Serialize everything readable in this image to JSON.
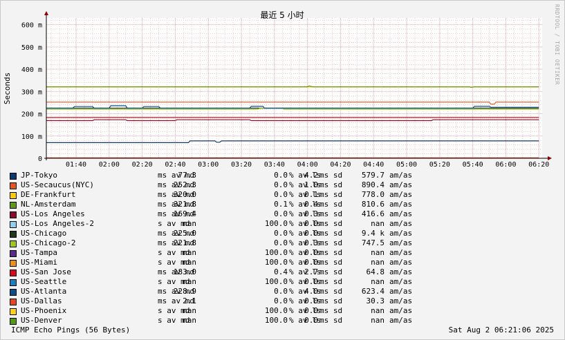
{
  "chart_data": {
    "type": "line",
    "title": "最近 5 小时",
    "ylabel": "Seconds",
    "xlabel": "",
    "ylim": [
      0,
      630
    ],
    "yticks": [
      0,
      100,
      200,
      300,
      400,
      500,
      600
    ],
    "ytick_labels": [
      "0",
      "100 m",
      "200 m",
      "300 m",
      "400 m",
      "500 m",
      "600 m"
    ],
    "xlim": [
      "01:22",
      "06:22"
    ],
    "xticks": [
      "01:40",
      "02:00",
      "02:20",
      "02:40",
      "03:00",
      "03:20",
      "03:40",
      "04:00",
      "04:20",
      "04:40",
      "05:00",
      "05:20",
      "05:40",
      "06:00",
      "06:20"
    ],
    "grid": true,
    "series": [
      {
        "name": "JP-Tokyo",
        "color": "#0b3a73",
        "points": [
          [
            "01:22",
            70
          ],
          [
            "02:48",
            70
          ],
          [
            "02:49",
            78
          ],
          [
            "03:04",
            78
          ],
          [
            "03:05",
            72
          ],
          [
            "03:07",
            72
          ],
          [
            "03:08",
            78
          ],
          [
            "06:20",
            78
          ]
        ]
      },
      {
        "name": "US-Secaucus(NYC)",
        "color": "#e8541f",
        "points": [
          [
            "01:22",
            252
          ],
          [
            "05:50",
            252
          ],
          [
            "05:51",
            243
          ],
          [
            "05:53",
            243
          ],
          [
            "05:54",
            252
          ],
          [
            "06:20",
            252
          ]
        ]
      },
      {
        "name": "DE-Frankfurt",
        "color": "#ffcc00",
        "points": [
          [
            "01:22",
            320
          ],
          [
            "06:20",
            320
          ]
        ]
      },
      {
        "name": "NL-Amsterdam",
        "color": "#5e9a14",
        "points": [
          [
            "01:22",
            321
          ],
          [
            "04:00",
            321
          ],
          [
            "04:01",
            325
          ],
          [
            "04:03",
            321
          ],
          [
            "05:38",
            321
          ],
          [
            "05:39",
            318
          ],
          [
            "05:41",
            321
          ],
          [
            "06:20",
            321
          ]
        ]
      },
      {
        "name": "US-Los Angeles",
        "color": "#8c0a2a",
        "points": [
          [
            "01:22",
            169
          ],
          [
            "01:50",
            169
          ],
          [
            "01:51",
            173
          ],
          [
            "02:10",
            173
          ],
          [
            "02:11",
            169
          ],
          [
            "02:40",
            169
          ],
          [
            "02:41",
            173
          ],
          [
            "03:25",
            173
          ],
          [
            "03:26",
            169
          ],
          [
            "05:15",
            169
          ],
          [
            "05:16",
            173
          ],
          [
            "06:20",
            173
          ]
        ]
      },
      {
        "name": "US-Los Angeles-2",
        "color": "#8fd0f0",
        "points": []
      },
      {
        "name": "US-Chicago",
        "color": "#20391d",
        "points": [
          [
            "01:22",
            225
          ],
          [
            "06:20",
            225
          ]
        ]
      },
      {
        "name": "US-Chicago-2",
        "color": "#a4c81a",
        "points": [
          [
            "01:22",
            220
          ],
          [
            "03:30",
            220
          ],
          [
            "03:31",
            224
          ],
          [
            "03:45",
            224
          ],
          [
            "03:46",
            220
          ],
          [
            "06:20",
            220
          ]
        ]
      },
      {
        "name": "US-Tampa",
        "color": "#5b2a8a",
        "points": []
      },
      {
        "name": "US-Miami",
        "color": "#f08c1a",
        "points": []
      },
      {
        "name": "US-San Jose",
        "color": "#d60a1a",
        "points": [
          [
            "01:22",
            183
          ],
          [
            "06:20",
            183
          ]
        ]
      },
      {
        "name": "US-Seattle",
        "color": "#1a7fc0",
        "points": []
      },
      {
        "name": "US-Atlanta",
        "color": "#0a4e8a",
        "points": [
          [
            "01:22",
            225
          ],
          [
            "01:38",
            225
          ],
          [
            "01:39",
            232
          ],
          [
            "01:50",
            232
          ],
          [
            "01:51",
            225
          ],
          [
            "02:00",
            225
          ],
          [
            "02:01",
            236
          ],
          [
            "02:10",
            236
          ],
          [
            "02:11",
            225
          ],
          [
            "02:20",
            225
          ],
          [
            "02:21",
            232
          ],
          [
            "02:30",
            232
          ],
          [
            "02:31",
            225
          ],
          [
            "03:25",
            225
          ],
          [
            "03:26",
            233
          ],
          [
            "03:33",
            233
          ],
          [
            "03:34",
            225
          ],
          [
            "05:40",
            225
          ],
          [
            "05:41",
            233
          ],
          [
            "05:50",
            233
          ],
          [
            "05:51",
            229
          ],
          [
            "06:20",
            229
          ]
        ]
      },
      {
        "name": "US-Dallas",
        "color": "#e8451f",
        "points": [
          [
            "01:22",
            2
          ],
          [
            "06:20",
            2
          ]
        ]
      },
      {
        "name": "US-Phoenix",
        "color": "#ffd21a",
        "points": []
      },
      {
        "name": "US-Denver",
        "color": "#4e9a14",
        "points": []
      }
    ]
  },
  "legend": [
    {
      "name": "JP-Tokyo",
      "color": "#0b3a73",
      "avg": "77.3",
      "avg_unit": "ms av md",
      "loss": "0.0",
      "loss_unit": "% av ls",
      "sd": "4.2",
      "sd_unit": "ms sd",
      "am": "579.7",
      "am_unit": "am/as"
    },
    {
      "name": "US-Secaucus(NYC)",
      "color": "#e8541f",
      "avg": "252.3",
      "avg_unit": "ms av md",
      "loss": "0.0",
      "loss_unit": "% av ls",
      "sd": "1.0",
      "sd_unit": "ms sd",
      "am": "890.4",
      "am_unit": "am/as"
    },
    {
      "name": "DE-Frankfurt",
      "color": "#ffcc00",
      "avg": "320.0",
      "avg_unit": "ms av md",
      "loss": "0.0",
      "loss_unit": "% av ls",
      "sd": "0.1",
      "sd_unit": "ms sd",
      "am": "778.0",
      "am_unit": "am/as"
    },
    {
      "name": "NL-Amsterdam",
      "color": "#5e9a14",
      "avg": "321.8",
      "avg_unit": "ms av md",
      "loss": "0.1",
      "loss_unit": "% av ls",
      "sd": "0.4",
      "sd_unit": "ms sd",
      "am": "810.6",
      "am_unit": "am/as"
    },
    {
      "name": "US-Los Angeles",
      "color": "#8c0a2a",
      "avg": "169.4",
      "avg_unit": "ms av md",
      "loss": "0.0",
      "loss_unit": "% av ls",
      "sd": "0.3",
      "sd_unit": "ms sd",
      "am": "416.6",
      "am_unit": "am/as"
    },
    {
      "name": "US-Los Angeles-2",
      "color": "#8fd0f0",
      "avg": "nan",
      "avg_unit": "s av md",
      "loss": "100.0",
      "loss_unit": "% av ls",
      "sd": "0.0",
      "sd_unit": "ms sd",
      "am": "nan",
      "am_unit": "am/as"
    },
    {
      "name": "US-Chicago",
      "color": "#20391d",
      "avg": "225.0",
      "avg_unit": "ms av md",
      "loss": "0.0",
      "loss_unit": "% av ls",
      "sd": "0.0",
      "sd_unit": "ms sd",
      "am": "9.4 k",
      "am_unit": "am/as"
    },
    {
      "name": "US-Chicago-2",
      "color": "#a4c81a",
      "avg": "221.8",
      "avg_unit": "ms av md",
      "loss": "0.0",
      "loss_unit": "% av ls",
      "sd": "0.3",
      "sd_unit": "ms sd",
      "am": "747.5",
      "am_unit": "am/as"
    },
    {
      "name": "US-Tampa",
      "color": "#5b2a8a",
      "avg": "nan",
      "avg_unit": "s av md",
      "loss": "100.0",
      "loss_unit": "% av ls",
      "sd": "0.0",
      "sd_unit": "ms sd",
      "am": "nan",
      "am_unit": "am/as"
    },
    {
      "name": "US-Miami",
      "color": "#f08c1a",
      "avg": "nan",
      "avg_unit": "s av md",
      "loss": "100.0",
      "loss_unit": "% av ls",
      "sd": "0.0",
      "sd_unit": "ms sd",
      "am": "nan",
      "am_unit": "am/as"
    },
    {
      "name": "US-San Jose",
      "color": "#d60a1a",
      "avg": "183.0",
      "avg_unit": "ms av md",
      "loss": "0.4",
      "loss_unit": "% av ls",
      "sd": "2.7",
      "sd_unit": "ms sd",
      "am": "64.8",
      "am_unit": "am/as"
    },
    {
      "name": "US-Seattle",
      "color": "#1a7fc0",
      "avg": "nan",
      "avg_unit": "s av md",
      "loss": "100.0",
      "loss_unit": "% av ls",
      "sd": "0.0",
      "sd_unit": "ms sd",
      "am": "nan",
      "am_unit": "am/as"
    },
    {
      "name": "US-Atlanta",
      "color": "#0a4e8a",
      "avg": "228.9",
      "avg_unit": "ms av md",
      "loss": "0.0",
      "loss_unit": "% av ls",
      "sd": "4.0",
      "sd_unit": "ms sd",
      "am": "623.4",
      "am_unit": "am/as"
    },
    {
      "name": "US-Dallas",
      "color": "#e8451f",
      "avg": "2.1",
      "avg_unit": "ms av md",
      "loss": "0.0",
      "loss_unit": "% av ls",
      "sd": "0.0",
      "sd_unit": "ms sd",
      "am": "30.3",
      "am_unit": "am/as"
    },
    {
      "name": "US-Phoenix",
      "color": "#ffd21a",
      "avg": "nan",
      "avg_unit": "s av md",
      "loss": "100.0",
      "loss_unit": "% av ls",
      "sd": "0.0",
      "sd_unit": "ms sd",
      "am": "nan",
      "am_unit": "am/as"
    },
    {
      "name": "US-Denver",
      "color": "#4e9a14",
      "avg": "nan",
      "avg_unit": "s av md",
      "loss": "100.0",
      "loss_unit": "% av ls",
      "sd": "0.0",
      "sd_unit": "ms sd",
      "am": "nan",
      "am_unit": "am/as"
    }
  ],
  "footer": {
    "left": "ICMP Echo Pings (56 Bytes)",
    "right": "Sat Aug  2 06:21:06 2025"
  },
  "watermark": "RRDTOOL / TOBI OETIKER"
}
